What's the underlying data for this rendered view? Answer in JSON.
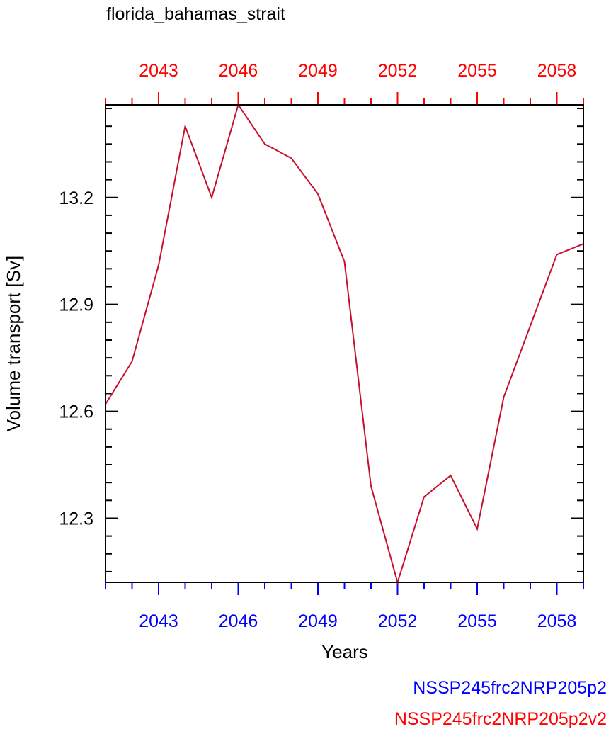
{
  "chart_data": {
    "type": "line",
    "title": "florida_bahamas_strait",
    "xlabel": "Years",
    "ylabel": "Volume transport [Sv]",
    "xlim": [
      2041,
      2059
    ],
    "ylim": [
      12.12,
      13.46
    ],
    "x_ticks": [
      2043,
      2046,
      2049,
      2052,
      2055,
      2058
    ],
    "x_tick_labels": [
      "2043",
      "2046",
      "2049",
      "2052",
      "2055",
      "2058"
    ],
    "y_ticks": [
      12.3,
      12.6,
      12.9,
      13.2
    ],
    "y_tick_labels": [
      "12.3",
      "12.6",
      "12.9",
      "13.2"
    ],
    "grid": false,
    "legend_placement": "bottom-right",
    "bottom_axis_color": "#0000ff",
    "top_axis_color": "#ff0000",
    "line_color": "#c8102e",
    "series": [
      {
        "name": "NSSP245frc2NRP205p2v2",
        "color": "#c8102e",
        "x": [
          2041,
          2042,
          2043,
          2044,
          2045,
          2046,
          2047,
          2048,
          2049,
          2050,
          2051,
          2052,
          2053,
          2054,
          2055,
          2056,
          2057,
          2058,
          2059
        ],
        "values": [
          12.62,
          12.74,
          13.01,
          13.4,
          13.2,
          13.46,
          13.35,
          13.31,
          13.21,
          13.02,
          12.39,
          12.12,
          12.36,
          12.42,
          12.27,
          12.64,
          12.84,
          13.04,
          13.07
        ]
      }
    ],
    "legend": [
      {
        "label": "NSSP245frc2NRP205p2",
        "color": "#0000ff"
      },
      {
        "label": "NSSP245frc2NRP205p2v2",
        "color": "#ff0000"
      }
    ]
  }
}
